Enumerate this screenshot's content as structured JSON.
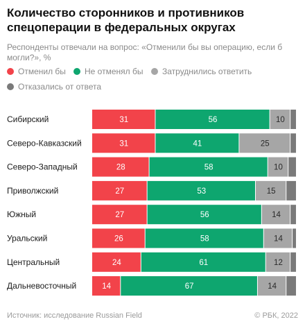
{
  "title": "Количество сторонников и противников спецоперации в федеральных округах",
  "subtitle": "Респонденты отвечали на вопрос: «Отменили бы вы операцию, если б могли?», %",
  "legend": [
    {
      "label": "Отменил бы",
      "color": "#f2434a"
    },
    {
      "label": "Не отменял бы",
      "color": "#0ea66f"
    },
    {
      "label": "Затруднились ответить",
      "color": "#a6a6a6"
    },
    {
      "label": "Отказались от ответа",
      "color": "#7a7a7a"
    }
  ],
  "chart_data": {
    "type": "bar",
    "orientation": "horizontal",
    "stacked": true,
    "categories": [
      "Сибирский",
      "Северо-Кавказский",
      "Северо-Западный",
      "Приволжский",
      "Южный",
      "Уральский",
      "Центральный",
      "Дальневосточный"
    ],
    "series": [
      {
        "name": "Отменил бы",
        "color": "#f2434a",
        "values": [
          31,
          31,
          28,
          27,
          27,
          26,
          24,
          14
        ]
      },
      {
        "name": "Не отменял бы",
        "color": "#0ea66f",
        "values": [
          56,
          41,
          58,
          53,
          56,
          58,
          61,
          67
        ]
      },
      {
        "name": "Затруднились ответить",
        "color": "#a6a6a6",
        "values": [
          10,
          25,
          10,
          15,
          14,
          14,
          12,
          14
        ]
      },
      {
        "name": "Отказались от ответа",
        "color": "#7a7a7a",
        "values": [
          3,
          3,
          4,
          5,
          3,
          2,
          3,
          5
        ]
      }
    ],
    "xlim": [
      0,
      100
    ],
    "grid": false
  },
  "footer": {
    "source": "Источник: исследование Russian Field",
    "copyright": "© РБК, 2022"
  }
}
